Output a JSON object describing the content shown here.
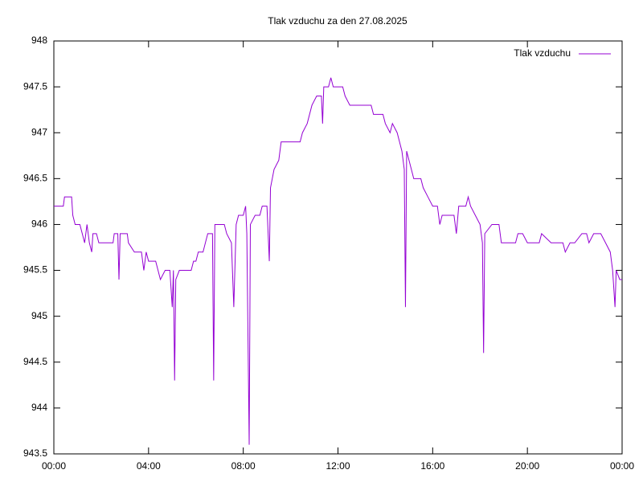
{
  "chart_data": {
    "type": "line",
    "title": "Tlak vzduchu za den 27.08.2025",
    "x": [
      0.0,
      0.4,
      0.45,
      0.75,
      0.8,
      0.9,
      1.1,
      1.2,
      1.3,
      1.4,
      1.5,
      1.6,
      1.65,
      1.8,
      1.9,
      2.5,
      2.55,
      2.7,
      2.75,
      2.8,
      3.1,
      3.15,
      3.4,
      3.7,
      3.8,
      3.9,
      4.0,
      4.3,
      4.4,
      4.5,
      4.7,
      4.9,
      5.0,
      5.05,
      5.1,
      5.15,
      5.3,
      5.8,
      5.9,
      6.0,
      6.1,
      6.3,
      6.4,
      6.5,
      6.7,
      6.75,
      6.8,
      7.2,
      7.3,
      7.5,
      7.6,
      7.7,
      7.8,
      8.0,
      8.1,
      8.15,
      8.25,
      8.3,
      8.5,
      8.7,
      8.8,
      9.0,
      9.1,
      9.15,
      9.3,
      9.5,
      9.6,
      9.8,
      10.0,
      10.2,
      10.4,
      10.5,
      10.7,
      10.9,
      11.1,
      11.3,
      11.35,
      11.4,
      11.6,
      11.7,
      11.8,
      12.2,
      12.3,
      12.5,
      12.8,
      13.0,
      13.4,
      13.5,
      13.9,
      14.0,
      14.2,
      14.3,
      14.5,
      14.6,
      14.7,
      14.8,
      14.85,
      14.9,
      15.0,
      15.2,
      15.5,
      15.6,
      15.8,
      16.0,
      16.2,
      16.3,
      16.4,
      16.6,
      16.9,
      17.0,
      17.1,
      17.4,
      17.5,
      17.6,
      17.8,
      18.0,
      18.1,
      18.15,
      18.2,
      18.5,
      18.8,
      18.9,
      19.5,
      19.6,
      19.8,
      20.0,
      20.5,
      20.6,
      21.0,
      21.5,
      21.6,
      21.8,
      22.0,
      22.3,
      22.5,
      22.6,
      22.8,
      23.1,
      23.3,
      23.5,
      23.6,
      23.7,
      23.75,
      23.9,
      24.0
    ],
    "series": [
      {
        "name": "Tlak vzduchu",
        "color": "#9400d3",
        "values": [
          946.2,
          946.2,
          946.3,
          946.3,
          946.1,
          946.0,
          946.0,
          945.9,
          945.8,
          946.0,
          945.8,
          945.7,
          945.9,
          945.9,
          945.8,
          945.8,
          945.9,
          945.9,
          945.4,
          945.9,
          945.9,
          945.8,
          945.7,
          945.7,
          945.5,
          945.7,
          945.6,
          945.6,
          945.5,
          945.4,
          945.5,
          945.5,
          945.1,
          945.5,
          944.3,
          945.4,
          945.5,
          945.5,
          945.6,
          945.6,
          945.7,
          945.7,
          945.8,
          945.9,
          945.9,
          944.3,
          946.0,
          946.0,
          945.9,
          945.8,
          945.1,
          946.0,
          946.1,
          946.1,
          946.2,
          945.9,
          943.6,
          946.0,
          946.1,
          946.1,
          946.2,
          946.2,
          945.6,
          946.4,
          946.6,
          946.7,
          946.9,
          946.9,
          946.9,
          946.9,
          946.9,
          947.0,
          947.1,
          947.3,
          947.4,
          947.4,
          947.1,
          947.5,
          947.5,
          947.6,
          947.5,
          947.5,
          947.4,
          947.3,
          947.3,
          947.3,
          947.3,
          947.2,
          947.2,
          947.1,
          947.0,
          947.1,
          947.0,
          946.9,
          946.8,
          946.6,
          945.1,
          946.8,
          946.7,
          946.5,
          946.5,
          946.4,
          946.3,
          946.2,
          946.2,
          946.0,
          946.1,
          946.1,
          946.1,
          945.9,
          946.2,
          946.2,
          946.3,
          946.2,
          946.1,
          946.0,
          945.8,
          944.6,
          945.9,
          946.0,
          946.0,
          945.8,
          945.8,
          945.9,
          945.9,
          945.8,
          945.8,
          945.9,
          945.8,
          945.8,
          945.7,
          945.8,
          945.8,
          945.9,
          945.9,
          945.8,
          945.9,
          945.9,
          945.8,
          945.7,
          945.5,
          945.1,
          945.5,
          945.4,
          945.4
        ]
      }
    ],
    "xlim": [
      0,
      24
    ],
    "xticks": [
      {
        "value": 0,
        "label": "00:00"
      },
      {
        "value": 4,
        "label": "04:00"
      },
      {
        "value": 8,
        "label": "08:00"
      },
      {
        "value": 12,
        "label": "12:00"
      },
      {
        "value": 16,
        "label": "16:00"
      },
      {
        "value": 20,
        "label": "20:00"
      },
      {
        "value": 24,
        "label": "00:00"
      }
    ],
    "ylim": [
      943.5,
      948
    ],
    "yticks": [
      943.5,
      944,
      944.5,
      945,
      945.5,
      946,
      946.5,
      947,
      947.5,
      948
    ],
    "legend": "upper right"
  }
}
